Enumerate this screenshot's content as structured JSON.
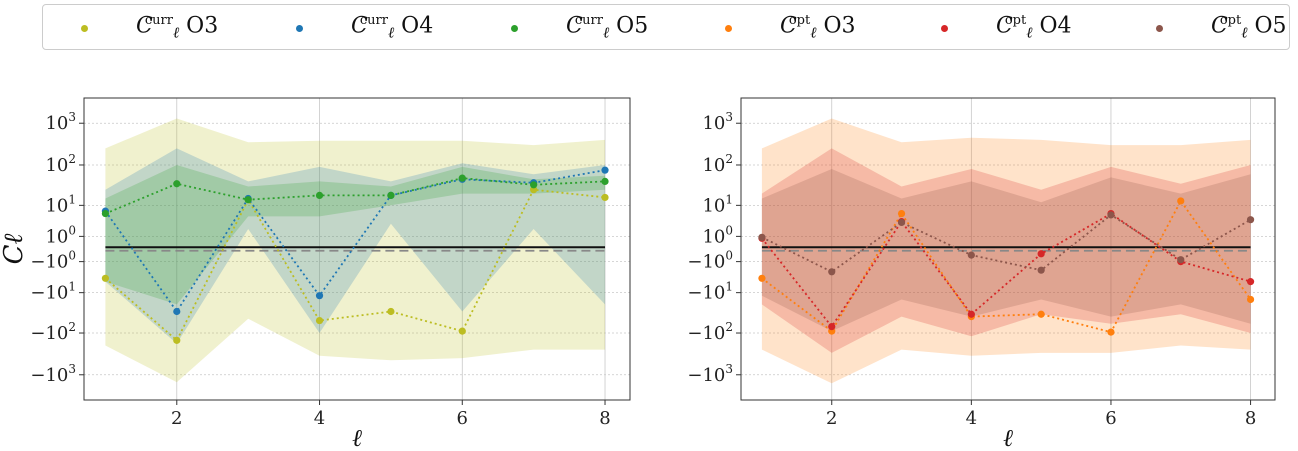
{
  "legend": {
    "symbol": "C",
    "subscript": "ℓ",
    "items": [
      {
        "name": "curr-O3",
        "sup": "curr",
        "run": "O3",
        "color": "#bcbd22"
      },
      {
        "name": "curr-O4",
        "sup": "curr",
        "run": "O4",
        "color": "#1f77b4"
      },
      {
        "name": "curr-O5",
        "sup": "curr",
        "run": "O5",
        "color": "#2ca02c"
      },
      {
        "name": "opt-O3",
        "sup": "opt",
        "run": "O3",
        "color": "#ff7f0e"
      },
      {
        "name": "opt-O4",
        "sup": "opt",
        "run": "O4",
        "color": "#d62728"
      },
      {
        "name": "opt-O5",
        "sup": "opt",
        "run": "O5",
        "color": "#8c564b"
      }
    ]
  },
  "chart_data": [
    {
      "type": "line",
      "panel": "left",
      "xlabel": "ℓ",
      "ylabel": "Cℓ",
      "yscale": "symlog",
      "xlim": [
        0.7,
        8.35
      ],
      "ylim": [
        -4000,
        4000
      ],
      "xticks": [
        "2",
        "4",
        "6",
        "8"
      ],
      "yticks": [
        "10^3",
        "10^2",
        "10^1",
        "10^0",
        "−10^0",
        "−10^1",
        "−10^2",
        "−10^3"
      ],
      "x": [
        1,
        2,
        3,
        4,
        5,
        6,
        7,
        8
      ],
      "reference_lines": [
        {
          "style": "solid",
          "value": 0.1
        },
        {
          "style": "dashed",
          "value": -0.1
        }
      ],
      "series": [
        {
          "name": "C_curr O3",
          "color": "#bcbd22",
          "values": [
            -4,
            -150,
            14,
            -50,
            -30,
            -90,
            25,
            16
          ],
          "band_upper": [
            250,
            1300,
            350,
            380,
            380,
            380,
            300,
            400
          ],
          "band_lower": [
            -200,
            -1500,
            -45,
            -350,
            -450,
            -400,
            -250,
            -250
          ]
        },
        {
          "name": "C_curr O4",
          "color": "#1f77b4",
          "values": [
            7,
            -30,
            15,
            -12,
            18,
            45,
            37,
            75
          ],
          "band_upper": [
            25,
            250,
            40,
            90,
            40,
            110,
            60,
            100
          ],
          "band_lower": [
            -5,
            -180,
            2,
            -100,
            3,
            -30,
            2,
            -20
          ]
        },
        {
          "name": "C_curr O5",
          "color": "#2ca02c",
          "values": [
            6,
            35,
            14,
            18,
            18,
            48,
            33,
            40
          ],
          "band_upper": [
            15,
            100,
            30,
            40,
            30,
            90,
            45,
            55
          ],
          "band_lower": [
            -5,
            -20,
            5,
            5,
            10,
            20,
            20,
            25
          ]
        }
      ]
    },
    {
      "type": "line",
      "panel": "right",
      "xlabel": "ℓ",
      "ylabel": "",
      "yscale": "symlog",
      "xlim": [
        0.7,
        8.35
      ],
      "ylim": [
        -4000,
        4000
      ],
      "xticks": [
        "2",
        "4",
        "6",
        "8"
      ],
      "yticks": [
        "10^3",
        "10^2",
        "10^1",
        "10^0",
        "−10^0",
        "−10^1",
        "−10^2",
        "−10^3"
      ],
      "x": [
        1,
        2,
        3,
        4,
        5,
        6,
        7,
        8
      ],
      "reference_lines": [
        {
          "style": "solid",
          "value": 0.1
        },
        {
          "style": "dashed",
          "value": -0.1
        }
      ],
      "series": [
        {
          "name": "C_opt O3",
          "color": "#ff7f0e",
          "values": [
            -4,
            -90,
            6,
            -40,
            -35,
            -95,
            13,
            -15
          ],
          "band_upper": [
            250,
            1300,
            350,
            450,
            400,
            300,
            300,
            400
          ],
          "band_lower": [
            -250,
            -1600,
            -250,
            -350,
            -300,
            -300,
            -200,
            -250
          ]
        },
        {
          "name": "C_opt O4",
          "color": "#d62728",
          "values": [
            0.8,
            -70,
            3.5,
            -35,
            -0.3,
            6,
            -1,
            -5
          ],
          "band_upper": [
            20,
            250,
            30,
            80,
            25,
            90,
            35,
            100
          ],
          "band_lower": [
            -20,
            -300,
            -40,
            -120,
            -35,
            -60,
            -35,
            -100
          ]
        },
        {
          "name": "C_opt O5",
          "color": "#8c564b",
          "values": [
            0.9,
            -2.5,
            3.3,
            -0.4,
            -2.2,
            5.5,
            -0.8,
            4
          ]
        },
        {
          "name": "opt O5 band",
          "color": "#8c564b",
          "band_upper": [
            15,
            80,
            15,
            40,
            12,
            50,
            20,
            60
          ],
          "band_lower": [
            -12,
            -90,
            -15,
            -40,
            -15,
            -40,
            -20,
            -60
          ]
        }
      ]
    }
  ]
}
